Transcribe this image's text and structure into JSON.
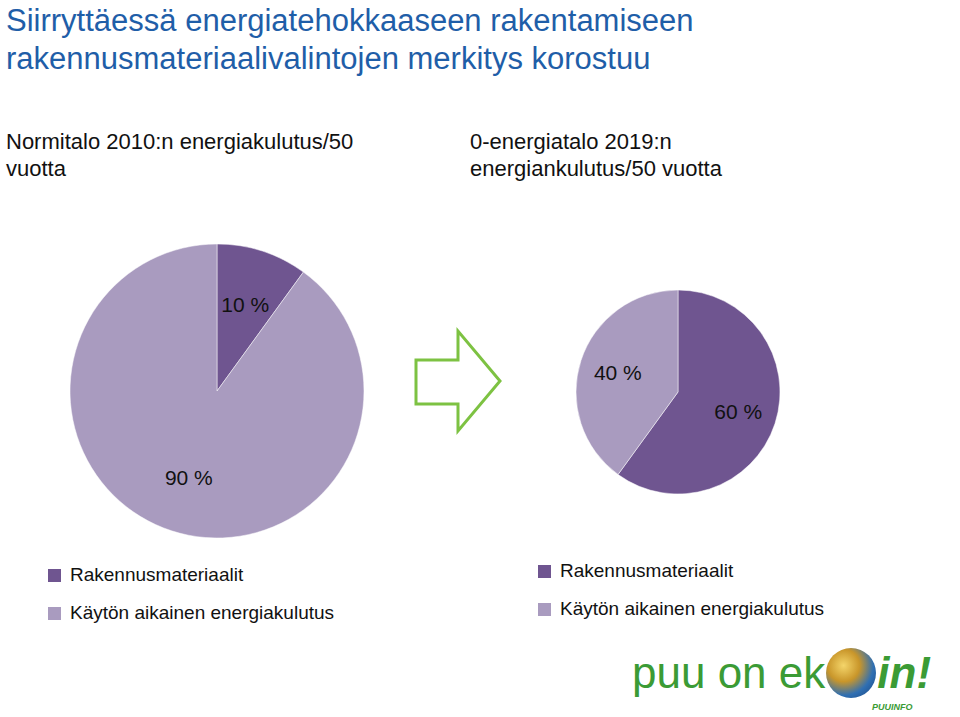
{
  "title": "Siirryttäessä energiatehokkaaseen rakentamiseen rakennusmateriaalivalintojen merkitys korostuu",
  "chart_data": [
    {
      "type": "pie",
      "title": "Normitalo 2010:n energiakulutus/50 vuotta",
      "categories": [
        "Rakennusmateriaalit",
        "Käytön aikainen energiakulutus"
      ],
      "values": [
        10,
        90
      ],
      "value_labels": [
        "10 %",
        "90 %"
      ],
      "colors": [
        "#6f5590",
        "#a99bbf"
      ],
      "data_labels": true
    },
    {
      "type": "pie",
      "title": "0-energiatalo 2019:n energiankulutus/50 vuotta",
      "categories": [
        "Rakennusmateriaalit",
        "Käytön aikainen energiakulutus"
      ],
      "values": [
        60,
        40
      ],
      "value_labels": [
        "60 %",
        "40 %"
      ],
      "colors": [
        "#6f5590",
        "#a99bbf"
      ],
      "data_labels": true
    }
  ],
  "logo": {
    "text_before": "puu on ek",
    "text_after": "in!",
    "brand": "PUUINFO"
  }
}
